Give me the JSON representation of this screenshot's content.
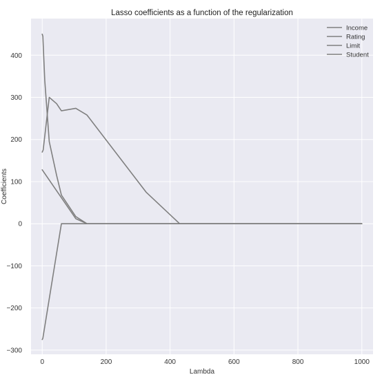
{
  "chart_data": {
    "type": "line",
    "title": "Lasso coefficients as a function of the regularization",
    "xlabel": "Lambda",
    "ylabel": "Coefficients",
    "xlim": [
      -35,
      1035
    ],
    "ylim": [
      -310,
      487
    ],
    "x_ticks": [
      0,
      200,
      400,
      600,
      800,
      1000
    ],
    "y_ticks": [
      -300,
      -200,
      -100,
      0,
      100,
      200,
      300,
      400
    ],
    "x_tick_labels": [
      "0",
      "200",
      "400",
      "600",
      "800",
      "1000"
    ],
    "y_tick_labels": [
      "−300",
      "−200",
      "−100",
      "0",
      "100",
      "200",
      "300",
      "400"
    ],
    "grid": true,
    "legend_position": "top-right",
    "background_color": "#eaeaf2",
    "line_color": "#7f7f7f",
    "series": [
      {
        "name": "Income",
        "x": [
          0,
          2,
          60,
          1000
        ],
        "y": [
          -275,
          -272,
          0,
          0
        ]
      },
      {
        "name": "Rating",
        "x": [
          0,
          3,
          22,
          45,
          60,
          105,
          140,
          325,
          430,
          1000
        ],
        "y": [
          170,
          175,
          300,
          285,
          268,
          274,
          258,
          75,
          0,
          0
        ]
      },
      {
        "name": "Limit",
        "x": [
          0,
          2,
          8,
          22,
          45,
          60,
          105,
          140,
          1000
        ],
        "y": [
          450,
          445,
          340,
          195,
          115,
          68,
          17,
          0,
          0
        ]
      },
      {
        "name": "Student",
        "x": [
          0,
          105,
          140,
          1000
        ],
        "y": [
          128,
          12,
          0,
          0
        ]
      }
    ]
  }
}
